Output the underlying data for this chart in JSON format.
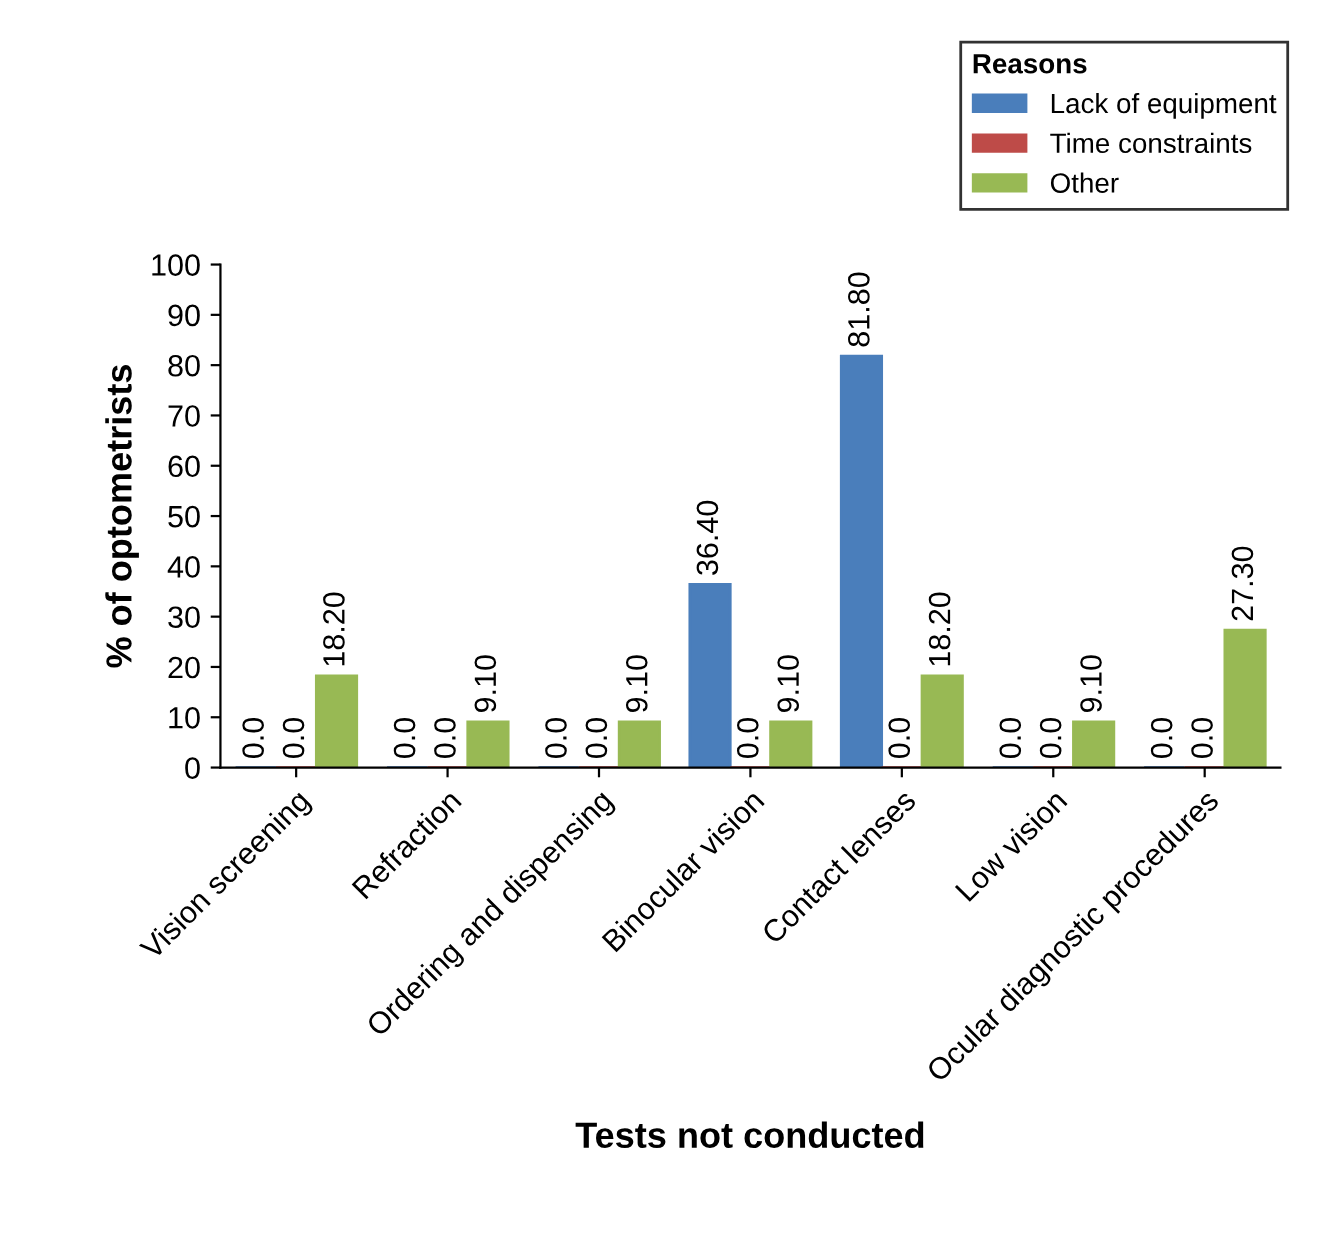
{
  "chart_data": {
    "type": "bar",
    "xlabel": "Tests not conducted",
    "ylabel": "% of optometrists",
    "legend_title": "Reasons",
    "legend": "top right",
    "categories": [
      "Vision screening",
      "Refraction",
      "Ordering and dispensing",
      "Binocular vision",
      "Contact lenses",
      "Low vision",
      "Ocular diagnostic procedures"
    ],
    "series": [
      {
        "name": "Lack of equipment",
        "color": "#4a7ebb",
        "values": [
          0,
          0,
          0,
          36.4,
          81.8,
          0,
          0
        ],
        "value_labels": [
          "0.0",
          "0.0",
          "0.0",
          "36.40",
          "81.80",
          "0.0",
          "0.0"
        ]
      },
      {
        "name": "Time constraints",
        "color": "#be4b48",
        "values": [
          0,
          0,
          0,
          0,
          0,
          0,
          0
        ],
        "value_labels": [
          "0.0",
          "0.0",
          "0.0",
          "0.0",
          "0.0",
          "0.0",
          "0.0"
        ]
      },
      {
        "name": "Other",
        "color": "#98b954",
        "values": [
          18.2,
          9.1,
          9.1,
          9.1,
          18.2,
          9.1,
          27.3
        ],
        "value_labels": [
          "18.20",
          "9.10",
          "9.10",
          "9.10",
          "18.20",
          "9.10",
          "27.30"
        ]
      }
    ],
    "ylim": [
      0,
      100
    ],
    "yticks": [
      0,
      10,
      20,
      30,
      40,
      50,
      60,
      70,
      80,
      90,
      100
    ],
    "grid": false
  }
}
